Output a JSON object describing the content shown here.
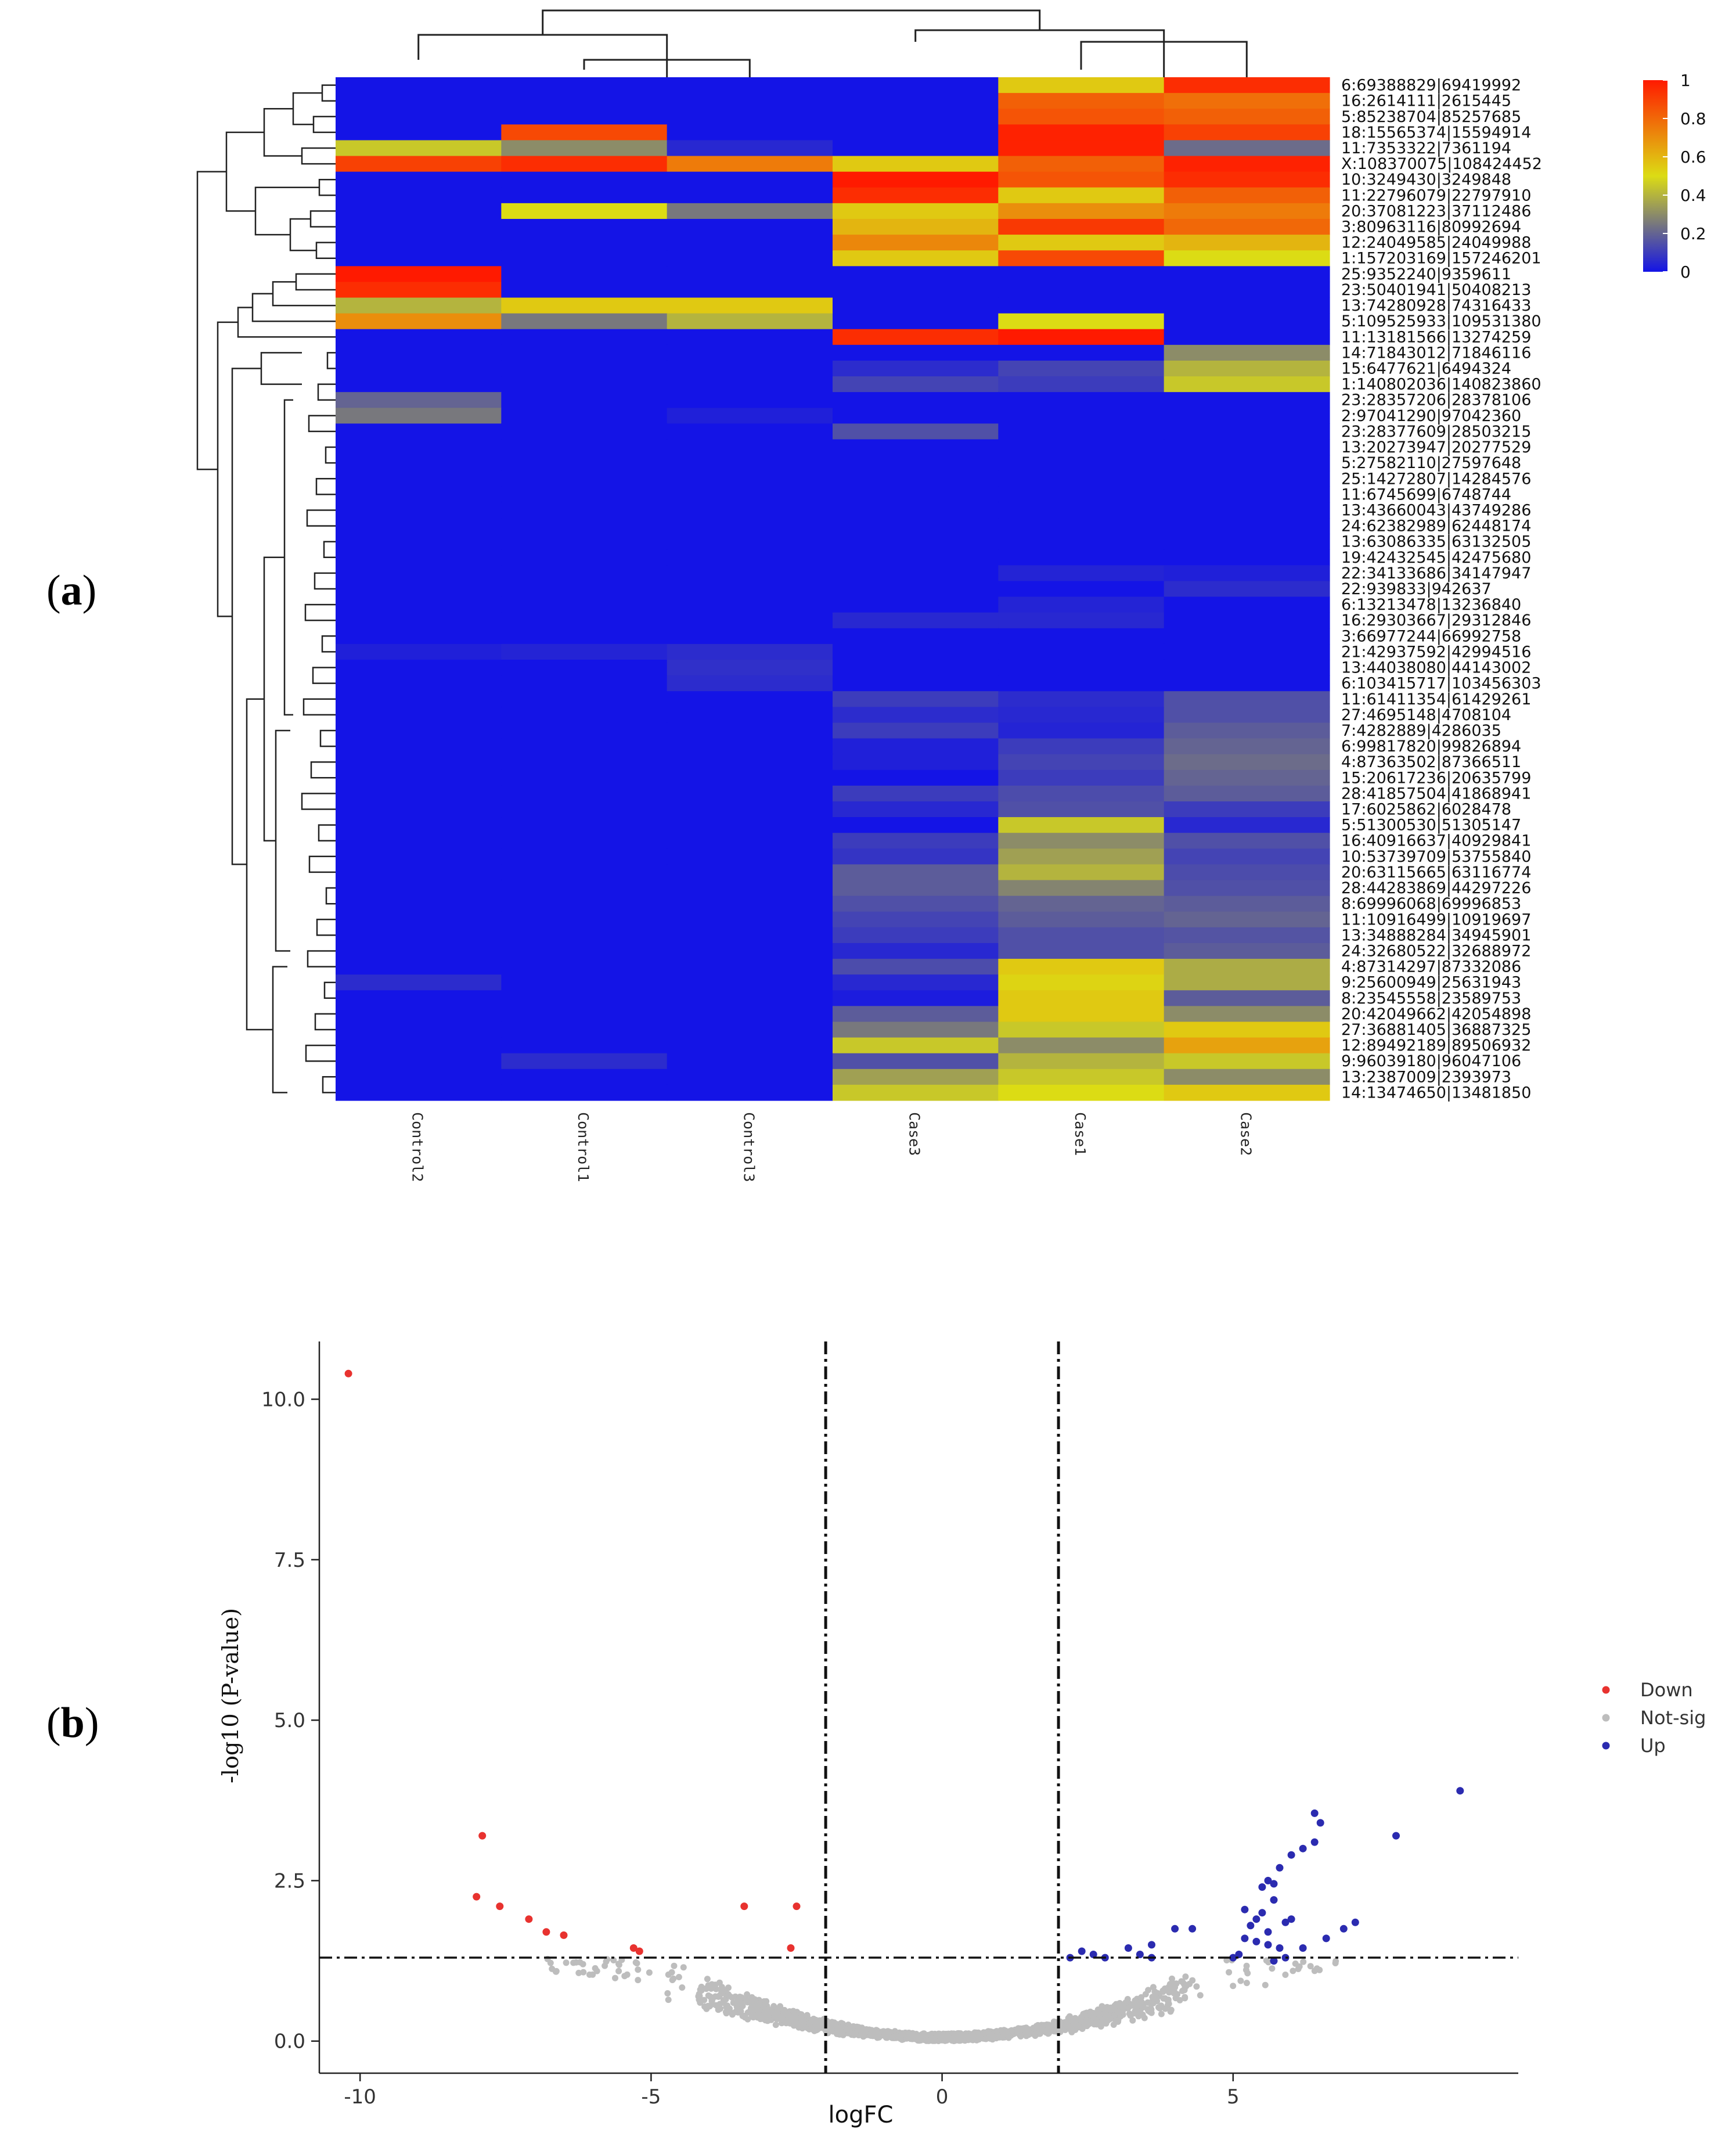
{
  "panels": {
    "a": {
      "prefix": "(",
      "letter": "a",
      "suffix": ")"
    },
    "b": {
      "prefix": "(",
      "letter": "b",
      "suffix": ")"
    }
  },
  "chart_data": [
    {
      "type": "heatmap",
      "title": "",
      "columns": [
        "Control2",
        "Control1",
        "Control3",
        "Case3",
        "Case1",
        "Case2"
      ],
      "rows": [
        "6:69388829|69419992",
        "16:2614111|2615445",
        "5:85238704|85257685",
        "18:15565374|15594914",
        "11:7353322|7361194",
        "X:108370075|108424452",
        "10:3249430|3249848",
        "11:22796079|22797910",
        "20:37081223|37112486",
        "3:80963116|80992694",
        "12:24049585|24049988",
        "1:157203169|157246201",
        "25:9352240|9359611",
        "23:50401941|50408213",
        "13:74280928|74316433",
        "5:109525933|109531380",
        "11:13181566|13274259",
        "14:71843012|71846116",
        "15:6477621|6494324",
        "1:140802036|140823860",
        "23:28357206|28378106",
        "2:97041290|97042360",
        "23:28377609|28503215",
        "13:20273947|20277529",
        "5:27582110|27597648",
        "25:14272807|14284576",
        "11:6745699|6748744",
        "13:43660043|43749286",
        "24:62382989|62448174",
        "13:63086335|63132505",
        "19:42432545|42475680",
        "22:34133686|34147947",
        "22:939833|942637",
        "6:13213478|13236840",
        "16:29303667|29312846",
        "3:66977244|66992758",
        "21:42937592|42994516",
        "13:44038080|44143002",
        "6:103415717|103456303",
        "11:61411354|61429261",
        "27:4695148|4708104",
        "7:4282889|4286035",
        "6:99817820|99826894",
        "4:87363502|87366511",
        "15:20617236|20635799",
        "28:41857504|41868941",
        "17:6025862|6028478",
        "5:51300530|51305147",
        "16:40916637|40929841",
        "10:53739709|53755840",
        "20:63115665|63116774",
        "28:44283869|44297226",
        "8:69996068|69996853",
        "11:10916499|10919697",
        "13:34888284|34945901",
        "24:32680522|32688972",
        "4:87314297|87332086",
        "9:25600949|25631943",
        "8:23545558|23589753",
        "20:42049662|42054898",
        "27:36881405|36887325",
        "12:89492189|89506932",
        "9:96039180|96047106",
        "13:2387009|2393973",
        "14:13474650|13481850"
      ],
      "values": [
        [
          0,
          0,
          0,
          0,
          0.55,
          0.95
        ],
        [
          0,
          0,
          0,
          0,
          0.82,
          0.78
        ],
        [
          0,
          0,
          0,
          0,
          0.85,
          0.82
        ],
        [
          0,
          0.88,
          0,
          0,
          0.98,
          0.9
        ],
        [
          0.45,
          0.3,
          0.05,
          0,
          0.98,
          0.22
        ],
        [
          0.9,
          0.95,
          0.75,
          0.55,
          0.82,
          0.98
        ],
        [
          0,
          0,
          0,
          1,
          0.85,
          0.95
        ],
        [
          0,
          0,
          0,
          0.95,
          0.55,
          0.82
        ],
        [
          0,
          0.5,
          0.25,
          0.55,
          0.7,
          0.75
        ],
        [
          0,
          0,
          0,
          0.6,
          0.92,
          0.8
        ],
        [
          0,
          0,
          0,
          0.72,
          0.55,
          0.6
        ],
        [
          0,
          0,
          0,
          0.55,
          0.88,
          0.5
        ],
        [
          1,
          0,
          0,
          0,
          0,
          0
        ],
        [
          0.95,
          0,
          0,
          0,
          0,
          0
        ],
        [
          0.4,
          0.55,
          0.55,
          0,
          0,
          0
        ],
        [
          0.7,
          0.25,
          0.4,
          0,
          0.5,
          0
        ],
        [
          0,
          0,
          0,
          0.95,
          1,
          0
        ],
        [
          0,
          0,
          0,
          0,
          0,
          0.3
        ],
        [
          0,
          0,
          0,
          0.06,
          0.12,
          0.4
        ],
        [
          0,
          0,
          0,
          0.12,
          0.1,
          0.45
        ],
        [
          0.2,
          0,
          0,
          0,
          0,
          0
        ],
        [
          0.25,
          0,
          0.03,
          0,
          0,
          0
        ],
        [
          0,
          0,
          0,
          0.15,
          0,
          0
        ],
        [
          0,
          0,
          0,
          0,
          0,
          0
        ],
        [
          0,
          0,
          0,
          0,
          0,
          0
        ],
        [
          0,
          0,
          0,
          0,
          0,
          0
        ],
        [
          0,
          0,
          0,
          0,
          0,
          0
        ],
        [
          0,
          0,
          0,
          0,
          0,
          0
        ],
        [
          0,
          0,
          0,
          0,
          0,
          0
        ],
        [
          0,
          0,
          0,
          0,
          0,
          0
        ],
        [
          0,
          0,
          0,
          0,
          0,
          0
        ],
        [
          0,
          0,
          0,
          0,
          0.04,
          0.03
        ],
        [
          0,
          0,
          0,
          0,
          0,
          0.06
        ],
        [
          0,
          0,
          0,
          0,
          0.04,
          0
        ],
        [
          0,
          0,
          0,
          0.05,
          0.05,
          0
        ],
        [
          0,
          0,
          0,
          0,
          0,
          0
        ],
        [
          0.03,
          0.04,
          0.06,
          0,
          0,
          0
        ],
        [
          0,
          0,
          0.07,
          0,
          0,
          0
        ],
        [
          0,
          0,
          0.06,
          0,
          0,
          0
        ],
        [
          0,
          0,
          0,
          0.1,
          0.06,
          0.15
        ],
        [
          0,
          0,
          0,
          0.06,
          0.05,
          0.15
        ],
        [
          0,
          0,
          0,
          0.1,
          0.04,
          0.18
        ],
        [
          0,
          0,
          0,
          0.03,
          0.1,
          0.2
        ],
        [
          0,
          0,
          0,
          0.03,
          0.12,
          0.22
        ],
        [
          0,
          0,
          0,
          0,
          0.1,
          0.2
        ],
        [
          0,
          0,
          0,
          0.1,
          0.14,
          0.18
        ],
        [
          0,
          0,
          0,
          0.05,
          0.15,
          0.1
        ],
        [
          0,
          0,
          0,
          0,
          0.45,
          0.05
        ],
        [
          0,
          0,
          0,
          0.1,
          0.3,
          0.15
        ],
        [
          0,
          0,
          0,
          0.08,
          0.35,
          0.12
        ],
        [
          0,
          0,
          0,
          0.18,
          0.4,
          0.14
        ],
        [
          0,
          0,
          0,
          0.18,
          0.28,
          0.15
        ],
        [
          0,
          0,
          0,
          0.15,
          0.2,
          0.18
        ],
        [
          0,
          0,
          0,
          0.12,
          0.18,
          0.2
        ],
        [
          0,
          0,
          0,
          0.1,
          0.15,
          0.16
        ],
        [
          0,
          0,
          0,
          0.05,
          0.15,
          0.18
        ],
        [
          0,
          0,
          0,
          0.14,
          0.55,
          0.38
        ],
        [
          0.06,
          0,
          0,
          0.05,
          0.52,
          0.38
        ],
        [
          0,
          0,
          0,
          0.02,
          0.55,
          0.18
        ],
        [
          0,
          0,
          0,
          0.18,
          0.55,
          0.3
        ],
        [
          0,
          0,
          0,
          0.25,
          0.45,
          0.55
        ],
        [
          0,
          0,
          0,
          0.45,
          0.3,
          0.65
        ],
        [
          0,
          0.06,
          0,
          0.15,
          0.4,
          0.45
        ],
        [
          0,
          0,
          0,
          0.35,
          0.45,
          0.3
        ],
        [
          0,
          0,
          0,
          0.45,
          0.5,
          0.55
        ]
      ],
      "legend": {
        "ticks": [
          "1",
          "0.8",
          "0.6",
          "0.4",
          "0.2",
          "0"
        ],
        "min": 0,
        "max": 1,
        "colors": [
          "#1414e6",
          "#dcdc14",
          "#ff1a00"
        ]
      },
      "dendrograms": {
        "row": true,
        "column": true
      }
    },
    {
      "type": "scatter",
      "title": "",
      "xlabel": "logFC",
      "ylabel": "-log10 (P-value)",
      "xlim": [
        -10.7,
        9.9
      ],
      "ylim": [
        -0.5,
        10.9
      ],
      "xticks": [
        {
          "v": -10,
          "l": "-10"
        },
        {
          "v": -5,
          "l": "-5"
        },
        {
          "v": 0,
          "l": "0"
        },
        {
          "v": 5,
          "l": "5"
        }
      ],
      "yticks": [
        {
          "v": 0,
          "l": "0.0"
        },
        {
          "v": 2.5,
          "l": "2.5"
        },
        {
          "v": 5,
          "l": "5.0"
        },
        {
          "v": 7.5,
          "l": "7.5"
        },
        {
          "v": 10,
          "l": "10.0"
        }
      ],
      "thresholds": {
        "x": [
          -2,
          2
        ],
        "y": 1.3
      },
      "legend": [
        {
          "label": "Down",
          "color": "#e8322f"
        },
        {
          "label": "Not-sig",
          "color": "#bdbdbd"
        },
        {
          "label": "Up",
          "color": "#2b2bb0"
        }
      ],
      "series": [
        {
          "name": "Down",
          "color": "#e8322f",
          "points": [
            [
              -10.2,
              10.4
            ],
            [
              -7.9,
              3.2
            ],
            [
              -8.0,
              2.25
            ],
            [
              -7.6,
              2.1
            ],
            [
              -7.1,
              1.9
            ],
            [
              -6.8,
              1.7
            ],
            [
              -6.5,
              1.65
            ],
            [
              -5.3,
              1.45
            ],
            [
              -5.2,
              1.4
            ],
            [
              -3.4,
              2.1
            ],
            [
              -2.5,
              2.1
            ],
            [
              -2.6,
              1.45
            ]
          ]
        },
        {
          "name": "Up",
          "color": "#2b2bb0",
          "points": [
            [
              8.9,
              3.9
            ],
            [
              7.8,
              3.2
            ],
            [
              6.4,
              3.55
            ],
            [
              6.5,
              3.4
            ],
            [
              6.2,
              3.0
            ],
            [
              6.4,
              3.1
            ],
            [
              6.0,
              2.9
            ],
            [
              5.8,
              2.7
            ],
            [
              5.6,
              2.5
            ],
            [
              5.5,
              2.4
            ],
            [
              5.7,
              2.2
            ],
            [
              5.5,
              2.0
            ],
            [
              5.4,
              1.9
            ],
            [
              5.3,
              1.8
            ],
            [
              5.6,
              1.7
            ],
            [
              5.2,
              1.6
            ],
            [
              5.4,
              1.55
            ],
            [
              5.6,
              1.5
            ],
            [
              5.8,
              1.45
            ],
            [
              5.1,
              1.35
            ],
            [
              5.9,
              1.85
            ],
            [
              6.0,
              1.9
            ],
            [
              6.6,
              1.6
            ],
            [
              6.9,
              1.75
            ],
            [
              7.1,
              1.85
            ],
            [
              4.0,
              1.75
            ],
            [
              3.6,
              1.5
            ],
            [
              2.4,
              1.4
            ],
            [
              2.6,
              1.35
            ],
            [
              2.8,
              1.3
            ],
            [
              3.4,
              1.35
            ],
            [
              3.6,
              1.3
            ],
            [
              6.2,
              1.45
            ],
            [
              5.9,
              1.3
            ],
            [
              5.7,
              1.25
            ],
            [
              5.0,
              1.3
            ],
            [
              2.2,
              1.3
            ],
            [
              3.2,
              1.45
            ],
            [
              4.3,
              1.75
            ],
            [
              5.2,
              2.05
            ],
            [
              5.7,
              2.45
            ]
          ]
        },
        {
          "name": "Not-sig",
          "color": "#bdbdbd",
          "generated": true,
          "count": 1300
        }
      ]
    }
  ]
}
